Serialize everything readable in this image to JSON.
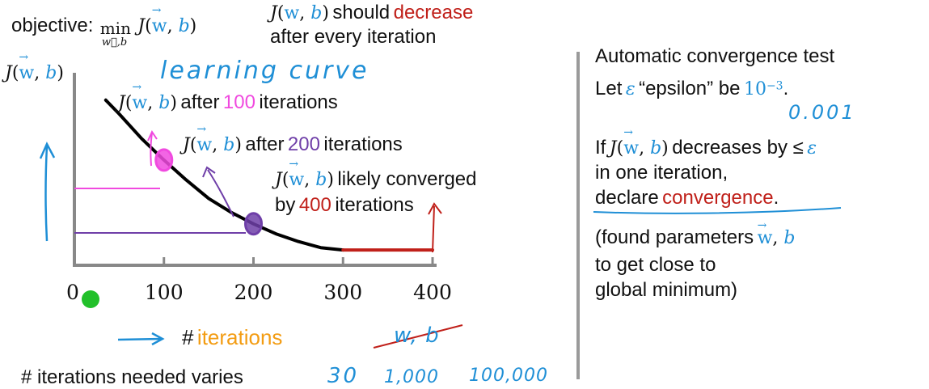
{
  "objective": {
    "label": "objective:",
    "min": "min",
    "min_sub": "w⃗,b",
    "func": "J",
    "w": "w",
    "b": "b"
  },
  "top_note": {
    "func": "J",
    "w": "w",
    "b": "b",
    "should": "should",
    "decrease": "decrease",
    "line2": "after every iteration"
  },
  "annotations": {
    "learning_curve": "learning curve",
    "a100_pre": "after",
    "a100_num": "100",
    "a100_post": "iterations",
    "a200_pre": "after",
    "a200_num": "200",
    "a200_post": "iterations",
    "a400_line1": "likely converged",
    "a400_by": "by",
    "a400_num": "400",
    "a400_post": "iterations",
    "w_b_crossed": "w, b"
  },
  "bottom": {
    "varies_label": "# iterations needed varies",
    "v1": "30",
    "v2": "1,000",
    "v3": "100,000",
    "hash": "#",
    "iterations": "iterations"
  },
  "right_panel": {
    "title": "Automatic convergence test",
    "let": "Let",
    "epsilon_sym": "ε",
    "epsilon_word": "“epsilon” be",
    "ten": "10",
    "exp": "−3",
    "dot": ".",
    "eps_value": "0.001",
    "if": "If",
    "decreases": "decreases by ≤",
    "in_one": "in one iteration,",
    "declare": "declare",
    "convergence": "convergence",
    "found_l1": "(found parameters",
    "found_l2": "to get close to",
    "found_l3": "global minimum)"
  },
  "colors": {
    "curve": "#000000",
    "flat_segment": "#c0201a",
    "pink": "#f04adf",
    "purple": "#6f3fa8",
    "blue": "#1f8fd6",
    "orange": "#f39c12",
    "red": "#c0201a",
    "green_dot": "#22c02a"
  },
  "chart_data": {
    "type": "line",
    "title": "learning curve",
    "xlabel": "# iterations",
    "ylabel": "J(w,b)",
    "x_ticks": [
      "0",
      "100",
      "200",
      "300",
      "400"
    ],
    "xlim": [
      0,
      400
    ],
    "ylim": [
      0,
      10
    ],
    "grid": false,
    "series": [
      {
        "x": [
          35,
          50,
          75,
          100,
          125,
          150,
          175,
          200,
          225,
          250,
          275,
          300
        ],
        "y": [
          9.8,
          8.9,
          7.3,
          5.9,
          4.6,
          3.4,
          2.5,
          1.75,
          1.1,
          0.6,
          0.2,
          0.05
        ]
      },
      {
        "x": [
          300,
          400
        ],
        "y": [
          0.05,
          0.05
        ]
      }
    ],
    "highlight_points": [
      {
        "x": 100,
        "y": 5.9
      },
      {
        "x": 200,
        "y": 1.75
      }
    ]
  }
}
